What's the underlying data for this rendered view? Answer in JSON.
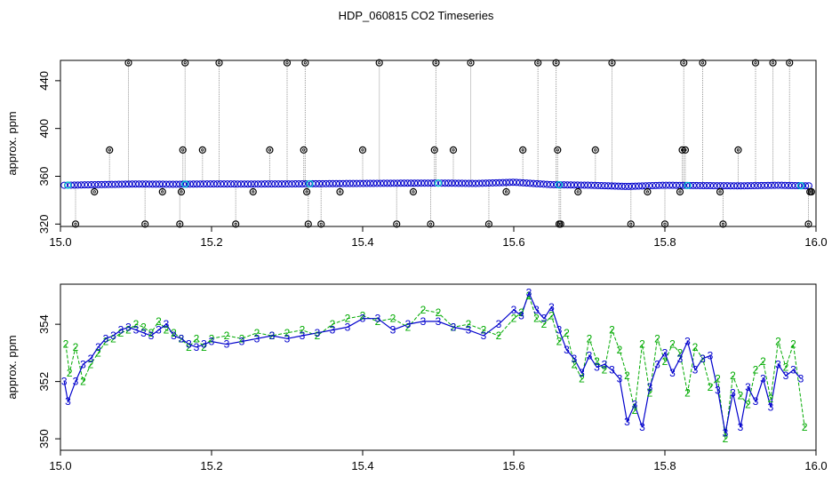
{
  "title": "HDP_060815  CO2 Timeseries",
  "colors": {
    "background": "#ffffff",
    "axis": "#000000",
    "outlier_points": "#000000",
    "outlier_lines": "#999999",
    "series_blue": "#0000cc",
    "series_cyan": "#00cccc",
    "series_green": "#00aa00"
  },
  "chart_data": [
    {
      "type": "scatter",
      "title": "HDP_060815  CO2 Timeseries",
      "xlabel": "",
      "ylabel": "approx. ppm",
      "xlim": [
        15.0,
        16.0
      ],
      "ylim": [
        318,
        457
      ],
      "xticks": [
        "15.0",
        "15.2",
        "15.4",
        "15.6",
        "15.8",
        "16.0"
      ],
      "yticks": [
        "320",
        "360",
        "400",
        "440"
      ],
      "grid": false,
      "description_series": [
        {
          "name": "",
          "marker": "open-circle",
          "color": "#0000cc",
          "x": [
            15.005,
            15.05,
            15.1,
            15.15,
            15.2,
            15.25,
            15.3,
            15.35,
            15.4,
            15.45,
            15.5,
            15.55,
            15.6,
            15.65,
            15.7,
            15.75,
            15.8,
            15.85,
            15.9,
            15.95,
            15.99
          ],
          "y": [
            352.5,
            353,
            353.5,
            353.3,
            353.6,
            353.5,
            353.6,
            353.8,
            354,
            354.2,
            354.3,
            354,
            355,
            353,
            352.5,
            351.5,
            352.5,
            352.2,
            352,
            352.5,
            352
          ]
        }
      ],
      "outliers": {
        "x": [
          15.02,
          15.045,
          15.065,
          15.09,
          15.112,
          15.135,
          15.158,
          15.16,
          15.162,
          15.165,
          15.188,
          15.21,
          15.232,
          15.255,
          15.277,
          15.3,
          15.322,
          15.324,
          15.326,
          15.328,
          15.345,
          15.37,
          15.4,
          15.422,
          15.445,
          15.467,
          15.49,
          15.495,
          15.497,
          15.52,
          15.543,
          15.567,
          15.59,
          15.612,
          15.632,
          15.656,
          15.658,
          15.66,
          15.662,
          15.685,
          15.708,
          15.73,
          15.755,
          15.777,
          15.8,
          15.82,
          15.823,
          15.825,
          15.827,
          15.85,
          15.873,
          15.877,
          15.897,
          15.92,
          15.943,
          15.965,
          15.99,
          15.992,
          15.994
        ],
        "y": [
          320,
          347,
          382,
          455,
          320,
          347,
          320,
          347,
          382,
          455,
          382,
          455,
          320,
          347,
          382,
          455,
          382,
          455,
          347,
          320,
          320,
          347,
          382,
          455,
          320,
          347,
          320,
          382,
          455,
          382,
          455,
          320,
          347,
          382,
          455,
          455,
          382,
          320,
          320,
          347,
          382,
          455,
          320,
          347,
          320,
          347,
          382,
          455,
          382,
          455,
          347,
          320,
          382,
          455,
          455,
          455,
          320,
          347,
          347
        ]
      }
    },
    {
      "type": "line",
      "title": "",
      "xlabel": "",
      "ylabel": "approx. ppm",
      "xlim": [
        15.0,
        16.0
      ],
      "ylim": [
        349.6,
        355.4
      ],
      "xticks": [
        "15.0",
        "15.2",
        "15.4",
        "15.6",
        "15.8",
        "16.0"
      ],
      "yticks": [
        "350",
        "352",
        "354"
      ],
      "grid": false,
      "series": [
        {
          "name": "",
          "marker": "3",
          "color": "#0000cc",
          "x": [
            15.005,
            15.01,
            15.02,
            15.03,
            15.04,
            15.05,
            15.06,
            15.07,
            15.08,
            15.09,
            15.1,
            15.11,
            15.12,
            15.13,
            15.14,
            15.15,
            15.16,
            15.17,
            15.18,
            15.19,
            15.2,
            15.22,
            15.24,
            15.26,
            15.28,
            15.3,
            15.32,
            15.34,
            15.36,
            15.38,
            15.4,
            15.42,
            15.44,
            15.46,
            15.48,
            15.5,
            15.52,
            15.54,
            15.56,
            15.58,
            15.6,
            15.61,
            15.62,
            15.63,
            15.64,
            15.65,
            15.66,
            15.67,
            15.68,
            15.69,
            15.7,
            15.71,
            15.72,
            15.73,
            15.74,
            15.75,
            15.76,
            15.77,
            15.78,
            15.79,
            15.8,
            15.81,
            15.82,
            15.83,
            15.84,
            15.85,
            15.86,
            15.87,
            15.88,
            15.89,
            15.9,
            15.91,
            15.92,
            15.93,
            15.94,
            15.95,
            15.96,
            15.97,
            15.98
          ],
          "y": [
            352.0,
            351.3,
            352.0,
            352.6,
            352.8,
            353.2,
            353.5,
            353.6,
            353.8,
            353.9,
            353.8,
            353.7,
            353.6,
            353.8,
            354.0,
            353.6,
            353.5,
            353.3,
            353.2,
            353.3,
            353.4,
            353.3,
            353.4,
            353.5,
            353.6,
            353.5,
            353.6,
            353.7,
            353.8,
            353.9,
            354.2,
            354.2,
            353.8,
            354.0,
            354.1,
            354.1,
            353.9,
            353.8,
            353.6,
            354.0,
            354.5,
            354.3,
            355.1,
            354.5,
            354.2,
            354.6,
            353.8,
            353.1,
            352.8,
            352.3,
            352.9,
            352.5,
            352.6,
            352.4,
            352.1,
            350.6,
            351.2,
            350.4,
            351.8,
            352.6,
            353.0,
            352.3,
            352.8,
            353.4,
            352.4,
            352.8,
            352.9,
            351.7,
            350.2,
            351.6,
            350.4,
            351.8,
            351.3,
            352.1,
            351.1,
            352.6,
            352.2,
            352.4,
            352.1
          ]
        },
        {
          "name": "",
          "marker": "2",
          "color": "#00aa00",
          "x": [
            15.007,
            15.012,
            15.02,
            15.03,
            15.04,
            15.05,
            15.06,
            15.07,
            15.08,
            15.09,
            15.1,
            15.11,
            15.12,
            15.13,
            15.14,
            15.15,
            15.16,
            15.17,
            15.18,
            15.19,
            15.2,
            15.22,
            15.24,
            15.26,
            15.28,
            15.3,
            15.32,
            15.34,
            15.36,
            15.38,
            15.4,
            15.42,
            15.44,
            15.46,
            15.48,
            15.5,
            15.52,
            15.54,
            15.56,
            15.58,
            15.6,
            15.61,
            15.62,
            15.63,
            15.64,
            15.65,
            15.66,
            15.67,
            15.68,
            15.69,
            15.7,
            15.71,
            15.72,
            15.73,
            15.74,
            15.75,
            15.76,
            15.77,
            15.78,
            15.79,
            15.8,
            15.81,
            15.82,
            15.83,
            15.84,
            15.85,
            15.86,
            15.87,
            15.88,
            15.89,
            15.9,
            15.91,
            15.92,
            15.93,
            15.94,
            15.95,
            15.96,
            15.97,
            15.985
          ],
          "y": [
            353.3,
            352.3,
            353.2,
            352.0,
            352.6,
            353.0,
            353.4,
            353.5,
            353.7,
            353.8,
            354.0,
            353.9,
            353.7,
            354.1,
            353.8,
            353.7,
            353.5,
            353.2,
            353.5,
            353.2,
            353.5,
            353.6,
            353.5,
            353.7,
            353.6,
            353.7,
            353.8,
            353.6,
            354.0,
            354.2,
            354.3,
            354.1,
            354.2,
            353.9,
            354.5,
            354.4,
            353.9,
            354.0,
            353.8,
            353.6,
            354.2,
            354.4,
            355.0,
            354.2,
            354.0,
            354.3,
            353.4,
            353.7,
            352.6,
            352.1,
            353.5,
            352.7,
            352.4,
            353.8,
            353.1,
            352.2,
            351.0,
            353.3,
            351.6,
            353.5,
            352.7,
            353.3,
            353.0,
            351.6,
            353.2,
            352.8,
            351.8,
            352.1,
            350.0,
            352.2,
            351.5,
            351.2,
            352.4,
            352.7,
            351.4,
            353.4,
            352.5,
            353.3,
            350.4
          ]
        }
      ]
    }
  ]
}
